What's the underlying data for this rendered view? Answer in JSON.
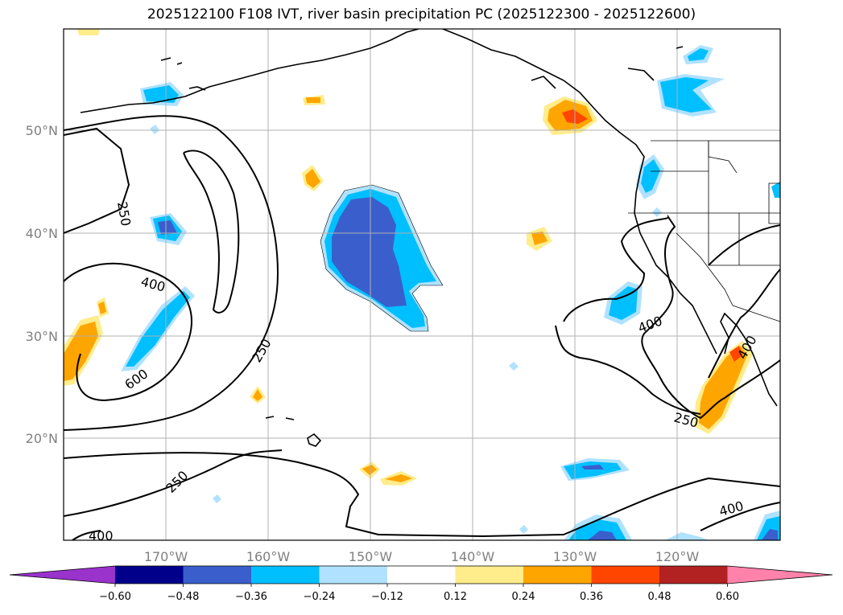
{
  "title": "2025122100 F108 IVT, river basin precipitation PC (2025122300 - 2025122600)",
  "map": {
    "lat_ticks": [
      "50°N",
      "40°N",
      "30°N",
      "20°N"
    ],
    "lon_ticks": [
      "170°W",
      "160°W",
      "150°W",
      "140°W",
      "130°W",
      "120°W"
    ],
    "contour_labels": [
      "250",
      "400",
      "600",
      "250",
      "250",
      "400",
      "400",
      "250",
      "400",
      "400"
    ]
  },
  "colorbar": {
    "ticks": [
      "−0.60",
      "−0.48",
      "−0.36",
      "−0.24",
      "−0.12",
      "0.12",
      "0.24",
      "0.36",
      "0.48",
      "0.60"
    ],
    "colors": [
      "#9933cc",
      "#00008b",
      "#3a5fcd",
      "#00bfff",
      "#b0e2ff",
      "#ffffff",
      "#ffec8b",
      "#ffa500",
      "#ff4500",
      "#b22222",
      "#ff82ab"
    ]
  }
}
